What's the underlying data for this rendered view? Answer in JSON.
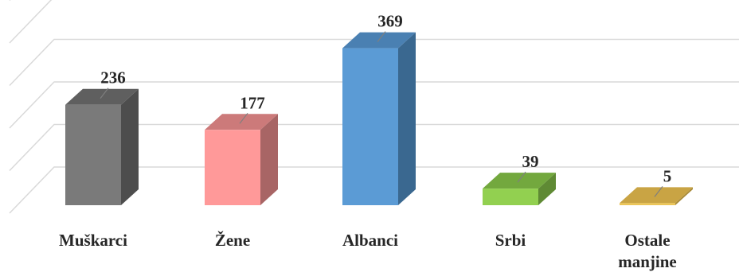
{
  "chart_data": {
    "type": "bar",
    "categories": [
      "Muškarci",
      "Žene",
      "Albanci",
      "Srbi",
      "Ostale manjine"
    ],
    "category_lines": [
      [
        "Muškarci"
      ],
      [
        "Žene"
      ],
      [
        "Albanci"
      ],
      [
        "Srbi"
      ],
      [
        "Ostale",
        "manjine"
      ]
    ],
    "values": [
      236,
      177,
      369,
      39,
      5
    ],
    "value_labels": [
      "236",
      "177",
      "369",
      "39",
      "5"
    ],
    "ylim": [
      0,
      500
    ],
    "grid": true,
    "legend": "none",
    "bar_colors": [
      {
        "front": "#7a7a7a",
        "side": "#4d4d4d",
        "top": "#5f5f5f"
      },
      {
        "front": "#ff9999",
        "side": "#a86565",
        "top": "#cc7a7a"
      },
      {
        "front": "#5b9bd5",
        "side": "#3a6890",
        "top": "#4a80b2"
      },
      {
        "front": "#92d050",
        "side": "#5f8a34",
        "top": "#73a83e"
      },
      {
        "front": "#ecc658",
        "side": "#a88a38",
        "top": "#c9a444"
      }
    ]
  }
}
